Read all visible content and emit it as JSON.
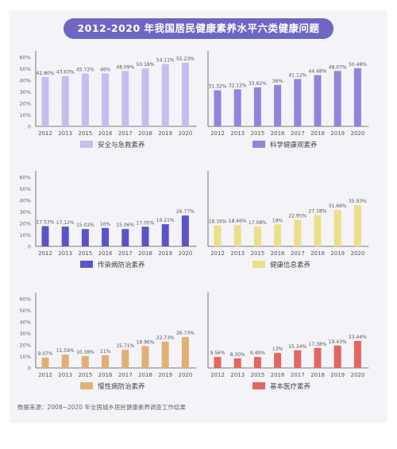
{
  "title": "2012-2020 年我国居民健康素养水平六类健康问题",
  "source": "数据来源：2008~2020 年全国城乡居民健康素养调查工作结果",
  "colors": {
    "panel_bg": "#f4f4f8",
    "title_bg": "#6d66c3",
    "safety": "#c3bff0",
    "science": "#8f86dc",
    "infectious": "#5a54c6",
    "information": "#ebdf8a",
    "chronic": "#e0b074",
    "basic_medical": "#e36660"
  },
  "chart_data": [
    {
      "type": "bar",
      "categories": [
        "2012",
        "2013",
        "2015",
        "2016",
        "2017",
        "2018",
        "2019",
        "2020"
      ],
      "series": [
        {
          "name": "安全与急救素养",
          "values": [
            42.8,
            43.63,
            45.72,
            46,
            48.09,
            50.18,
            54.11,
            55.23
          ],
          "labels": [
            "42.80%",
            "43.63%",
            "45.72%",
            "46%",
            "48.09%",
            "50.18%",
            "54.11%",
            "55.23%"
          ]
        }
      ],
      "yticks": [
        "0",
        "10%",
        "20%",
        "30%",
        "40%",
        "50%",
        "60%"
      ],
      "ylim": [
        0,
        60
      ],
      "color": "#c3bff0"
    },
    {
      "type": "bar",
      "categories": [
        "2012",
        "2013",
        "2015",
        "2016",
        "2017",
        "2018",
        "2019",
        "2020"
      ],
      "series": [
        {
          "name": "科学健康观素养",
          "values": [
            31.32,
            32.12,
            33.82,
            36,
            41.12,
            44.48,
            48.07,
            50.48
          ],
          "labels": [
            "31.32%",
            "32.12%",
            "33.82%",
            "36%",
            "41.12%",
            "44.48%",
            "48.07%",
            "50.48%"
          ]
        }
      ],
      "ylim": [
        0,
        60
      ],
      "color": "#8f86dc"
    },
    {
      "type": "bar",
      "categories": [
        "2012",
        "2013",
        "2015",
        "2016",
        "2017",
        "2018",
        "2019",
        "2020"
      ],
      "series": [
        {
          "name": "传染病防治素养",
          "values": [
            17.53,
            17.12,
            15.02,
            16,
            15.06,
            17.05,
            19.21,
            26.77
          ],
          "labels": [
            "17.53%",
            "17.12%",
            "15.02%",
            "16%",
            "15.06%",
            "17.05%",
            "19.21%",
            "26.77%"
          ]
        }
      ],
      "yticks": [
        "0",
        "10%",
        "20%",
        "30%",
        "40%",
        "50%",
        "60%"
      ],
      "ylim": [
        0,
        60
      ],
      "color": "#5a54c6"
    },
    {
      "type": "bar",
      "categories": [
        "2012",
        "2013",
        "2015",
        "2016",
        "2017",
        "2018",
        "2019",
        "2020"
      ],
      "series": [
        {
          "name": "健康信息素养",
          "values": [
            18.16,
            18.46,
            17.08,
            19,
            22.95,
            27.18,
            31.66,
            35.93
          ],
          "labels": [
            "18.16%",
            "18.46%",
            "17.08%",
            "19%",
            "22.95%",
            "27.18%",
            "31.66%",
            "35.93%"
          ]
        }
      ],
      "ylim": [
        0,
        60
      ],
      "color": "#ebdf8a"
    },
    {
      "type": "bar",
      "categories": [
        "2012",
        "2013",
        "2015",
        "2016",
        "2017",
        "2018",
        "2019",
        "2020"
      ],
      "series": [
        {
          "name": "慢性病防治素养",
          "values": [
            9.07,
            11.59,
            10.38,
            11,
            15.71,
            18.96,
            22.73,
            26.73
          ],
          "labels": [
            "9.07%",
            "11.59%",
            "10.38%",
            "11%",
            "15.71%",
            "18.96%",
            "22.73%",
            "26.73%"
          ]
        }
      ],
      "yticks": [
        "0",
        "10%",
        "20%",
        "30%",
        "40%",
        "50%",
        "60%"
      ],
      "ylim": [
        0,
        60
      ],
      "color": "#e0b074"
    },
    {
      "type": "bar",
      "categories": [
        "2012",
        "2013",
        "2015",
        "2016",
        "2017",
        "2018",
        "2019",
        "2020"
      ],
      "series": [
        {
          "name": "基本医疗素养",
          "values": [
            9.56,
            8.3,
            9.49,
            13,
            15.34,
            17.38,
            19.43,
            23.44
          ],
          "labels": [
            "9.56%",
            "8.30%",
            "9.49%",
            "13%",
            "15.34%",
            "17.38%",
            "19.43%",
            "23.44%"
          ]
        }
      ],
      "ylim": [
        0,
        60
      ],
      "color": "#e36660"
    }
  ]
}
